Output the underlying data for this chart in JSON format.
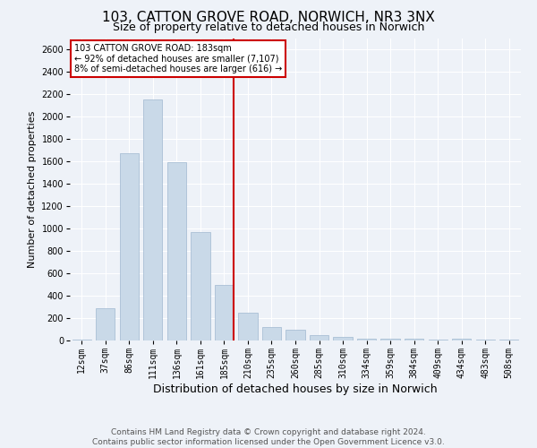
{
  "title": "103, CATTON GROVE ROAD, NORWICH, NR3 3NX",
  "subtitle": "Size of property relative to detached houses in Norwich",
  "xlabel": "Distribution of detached houses by size in Norwich",
  "ylabel": "Number of detached properties",
  "categories": [
    "12sqm",
    "37sqm",
    "86sqm",
    "111sqm",
    "136sqm",
    "161sqm",
    "185sqm",
    "210sqm",
    "235sqm",
    "260sqm",
    "285sqm",
    "310sqm",
    "334sqm",
    "359sqm",
    "384sqm",
    "409sqm",
    "434sqm",
    "483sqm",
    "508sqm"
  ],
  "values": [
    10,
    290,
    1670,
    2150,
    1590,
    965,
    500,
    245,
    120,
    95,
    50,
    30,
    20,
    15,
    20,
    10,
    15,
    10,
    10
  ],
  "bar_color": "#c9d9e8",
  "bar_edgecolor": "#a0b8d0",
  "vline_x_index": 6,
  "vline_color": "#cc0000",
  "annotation_title": "103 CATTON GROVE ROAD: 183sqm",
  "annotation_line1": "← 92% of detached houses are smaller (7,107)",
  "annotation_line2": "8% of semi-detached houses are larger (616) →",
  "annotation_box_color": "#cc0000",
  "annotation_text_color": "#000000",
  "ylim": [
    0,
    2700
  ],
  "yticks": [
    0,
    200,
    400,
    600,
    800,
    1000,
    1200,
    1400,
    1600,
    1800,
    2000,
    2200,
    2400,
    2600
  ],
  "background_color": "#eef2f8",
  "grid_color": "#ffffff",
  "footer1": "Contains HM Land Registry data © Crown copyright and database right 2024.",
  "footer2": "Contains public sector information licensed under the Open Government Licence v3.0.",
  "title_fontsize": 11,
  "subtitle_fontsize": 9,
  "xlabel_fontsize": 9,
  "ylabel_fontsize": 8,
  "tick_fontsize": 7,
  "footer_fontsize": 6.5
}
